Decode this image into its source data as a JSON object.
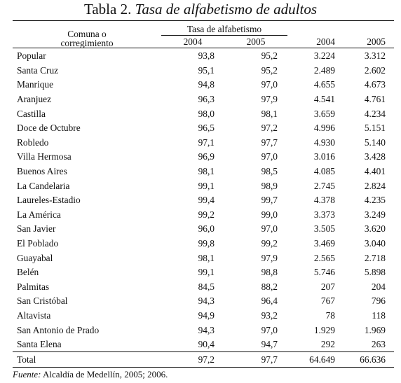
{
  "title": {
    "prefix": "Tabla 2.",
    "italic": "Tasa de alfabetismo de adultos"
  },
  "headers": {
    "comuna_line1": "Comuna o",
    "comuna_line2": "corregimiento",
    "group": "Tasa de alfabetismo",
    "rate_2004": "2004",
    "rate_2005": "2005",
    "pop_2004": "2004",
    "pop_2005": "2005"
  },
  "rows": [
    [
      "Popular",
      "93,8",
      "95,2",
      "3.224",
      "3.312"
    ],
    [
      "Santa Cruz",
      "95,1",
      "95,2",
      "2.489",
      "2.602"
    ],
    [
      "Manrique",
      "94,8",
      "97,0",
      "4.655",
      "4.673"
    ],
    [
      "Aranjuez",
      "96,3",
      "97,9",
      "4.541",
      "4.761"
    ],
    [
      "Castilla",
      "98,0",
      "98,1",
      "3.659",
      "4.234"
    ],
    [
      "Doce de Octubre",
      "96,5",
      "97,2",
      "4.996",
      "5.151"
    ],
    [
      "Robledo",
      "97,1",
      "97,7",
      "4.930",
      "5.140"
    ],
    [
      "Villa Hermosa",
      "96,9",
      "97,0",
      "3.016",
      "3.428"
    ],
    [
      "Buenos Aires",
      "98,1",
      "98,5",
      "4.085",
      "4.401"
    ],
    [
      "La Candelaria",
      "99,1",
      "98,9",
      "2.745",
      "2.824"
    ],
    [
      "Laureles-Estadio",
      "99,4",
      "99,7",
      "4.378",
      "4.235"
    ],
    [
      "La América",
      "99,2",
      "99,0",
      "3.373",
      "3.249"
    ],
    [
      "San Javier",
      "96,0",
      "97,0",
      "3.505",
      "3.620"
    ],
    [
      "El Poblado",
      "99,8",
      "99,2",
      "3.469",
      "3.040"
    ],
    [
      "Guayabal",
      "98,1",
      "97,9",
      "2.565",
      "2.718"
    ],
    [
      "Belén",
      "99,1",
      "98,8",
      "5.746",
      "5.898"
    ],
    [
      "Palmitas",
      "84,5",
      "88,2",
      "207",
      "204"
    ],
    [
      "San Cristóbal",
      "94,3",
      "96,4",
      "767",
      "796"
    ],
    [
      "Altavista",
      "94,9",
      "93,2",
      "78",
      "118"
    ],
    [
      "San Antonio de Prado",
      "94,3",
      "97,0",
      "1.929",
      "1.969"
    ],
    [
      "Santa Elena",
      "90,4",
      "94,7",
      "292",
      "263"
    ]
  ],
  "total": [
    "Total",
    "97,2",
    "97,7",
    "64.649",
    "66.636"
  ],
  "source": {
    "label": "Fuente:",
    "text": "Alcaldía de Medellín, 2005; 2006."
  }
}
